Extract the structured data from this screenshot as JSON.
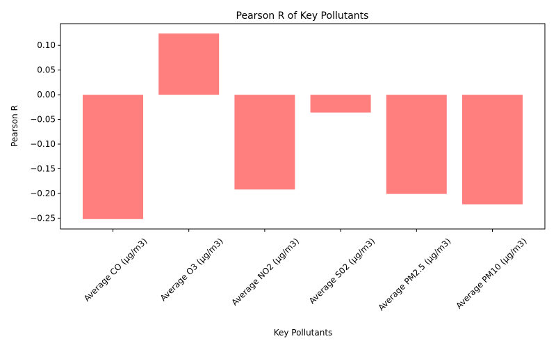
{
  "chart_data": {
    "type": "bar",
    "title": "Pearson R of Key Pollutants",
    "xlabel": "Key Pollutants",
    "ylabel": "Pearson R",
    "categories": [
      "Average CO (µg/m3)",
      "Average O3 (µg/m3)",
      "Average NO2 (µg/m3)",
      "Average S02 (µg/m3)",
      "Average PM2.5 (µg/m3)",
      "Average PM10 (µg/m3)"
    ],
    "values": [
      -0.252,
      0.124,
      -0.192,
      -0.036,
      -0.201,
      -0.222
    ],
    "ylim": [
      -0.272,
      0.144
    ],
    "yticks": [
      0.1,
      0.05,
      0.0,
      -0.05,
      -0.1,
      -0.15,
      -0.2,
      -0.25
    ],
    "ytick_labels": [
      "0.10",
      "0.05",
      "0.00",
      "−0.05",
      "−0.10",
      "−0.15",
      "−0.20",
      "−0.25"
    ],
    "bar_color": "#ff7f7f",
    "grid": false,
    "legend": "none"
  }
}
